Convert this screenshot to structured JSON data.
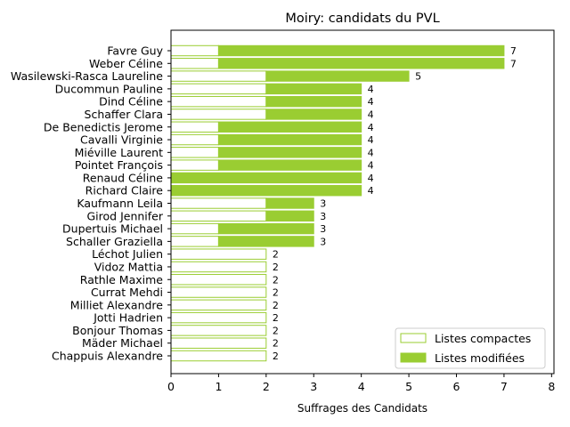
{
  "chart_data": {
    "type": "bar",
    "orientation": "horizontal",
    "stacked": true,
    "title": "Moiry: candidats du PVL",
    "xlabel": "Suffrages des Candidats",
    "ylabel": "",
    "xlim": [
      0,
      8.05
    ],
    "xticks": [
      "0",
      "1",
      "2",
      "3",
      "4",
      "5",
      "6",
      "7",
      "8"
    ],
    "grid": false,
    "legend_position": "lower-right",
    "categories": [
      "Favre Guy",
      "Weber Céline",
      "Wasilewski-Rasca Laureline",
      "Ducommun Pauline",
      "Dind Céline",
      "Schaffer Clara",
      "De Benedictis Jerome",
      "Cavalli Virginie",
      "Miéville Laurent",
      "Pointet François",
      "Renaud Céline",
      "Richard Claire",
      "Kaufmann Leila",
      "Girod Jennifer",
      "Dupertuis Michael",
      "Schaller Graziella",
      "Léchot Julien",
      "Vidoz Mattia",
      "Rathle Maxime",
      "Currat Mehdi",
      "Milliet Alexandre",
      "Jotti Hadrien",
      "Bonjour Thomas",
      "Mäder Michael",
      "Chappuis Alexandre"
    ],
    "series": [
      {
        "name": "Listes compactes",
        "style": "outline",
        "values": [
          1,
          1,
          2,
          2,
          2,
          2,
          1,
          1,
          1,
          1,
          0,
          0,
          2,
          2,
          1,
          1,
          2,
          2,
          2,
          2,
          2,
          2,
          2,
          2,
          2
        ]
      },
      {
        "name": "Listes modifiées",
        "style": "filled",
        "values": [
          6,
          6,
          3,
          2,
          2,
          2,
          3,
          3,
          3,
          3,
          4,
          4,
          1,
          1,
          2,
          2,
          0,
          0,
          0,
          0,
          0,
          0,
          0,
          0,
          0
        ]
      }
    ],
    "totals": [
      7,
      7,
      5,
      4,
      4,
      4,
      4,
      4,
      4,
      4,
      4,
      4,
      3,
      3,
      3,
      3,
      2,
      2,
      2,
      2,
      2,
      2,
      2,
      2,
      2
    ],
    "colors": {
      "bar": "#9acd32",
      "outline_fill": "#ffffff",
      "axis": "#000000"
    }
  }
}
